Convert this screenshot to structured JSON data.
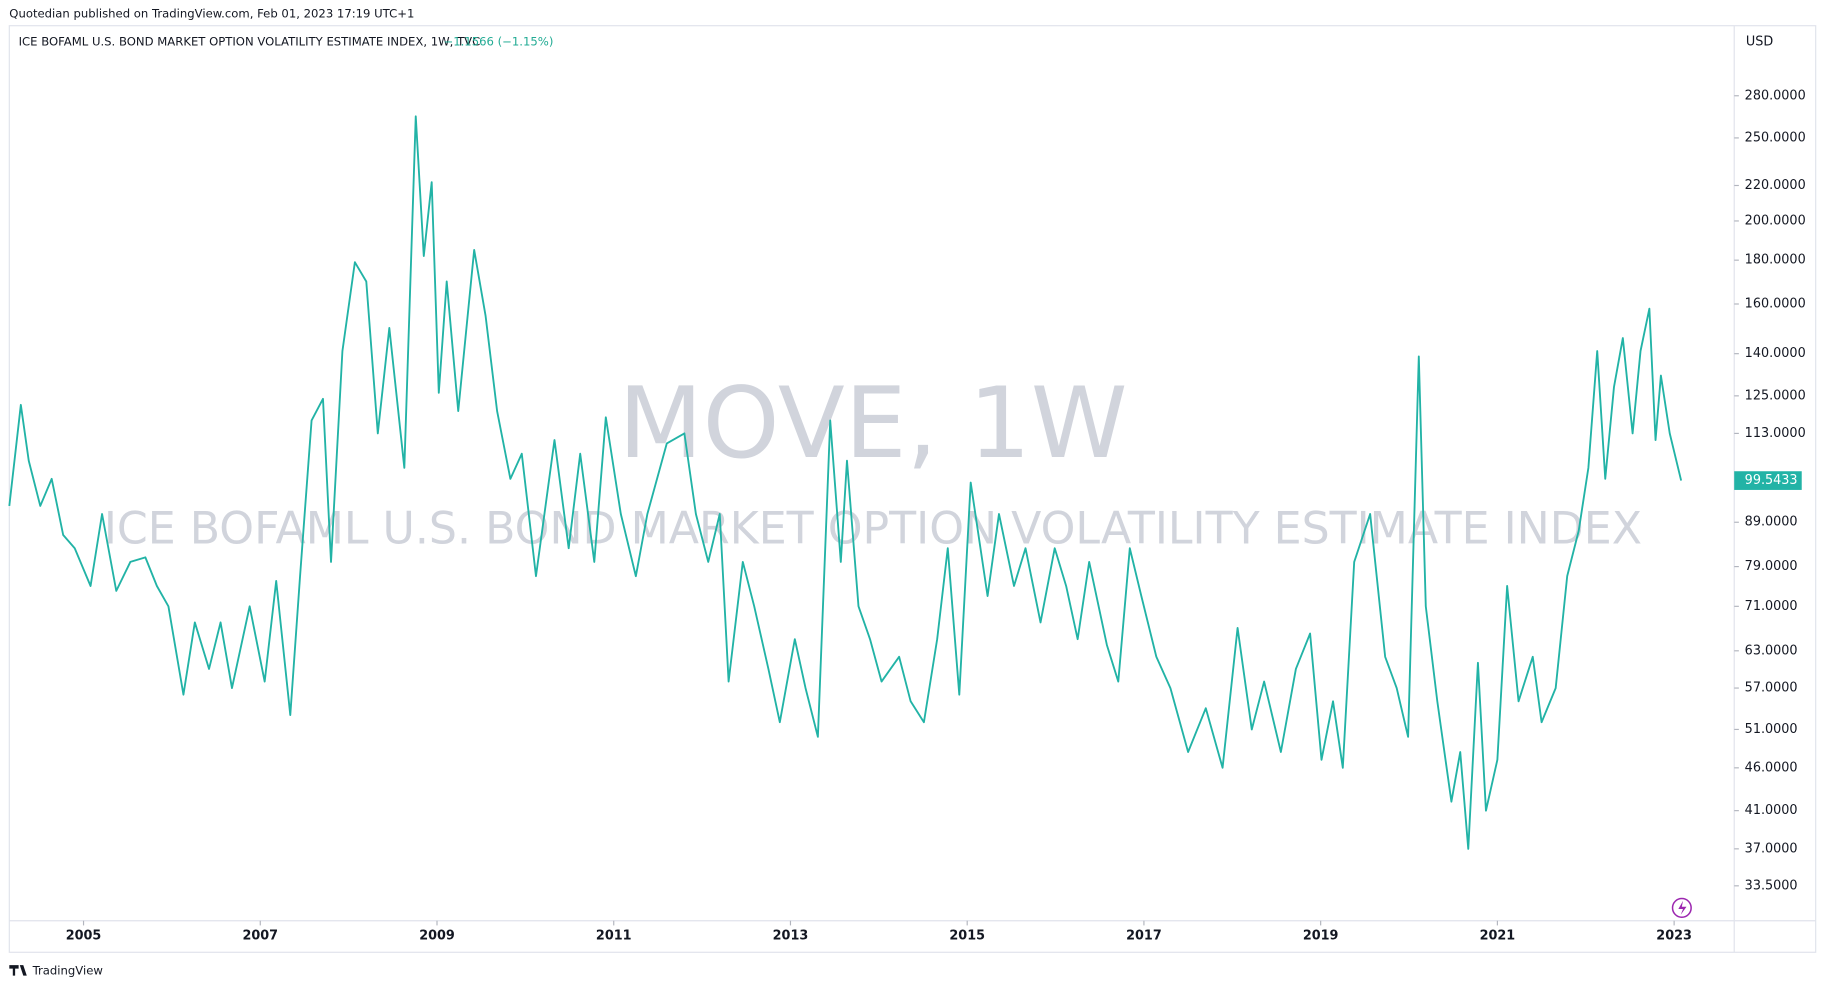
{
  "header": {
    "publisher": "Quotedian published on TradingView.com, Feb 01, 2023 17:19 UTC+1",
    "brand": "TradingView"
  },
  "chart_data": {
    "type": "line",
    "title": "ICE BOFAML U.S. BOND MARKET OPTION VOLATILITY ESTIMATE INDEX, 1W, TVC",
    "change": "−1.1566 (−1.15%)",
    "currency": "USD",
    "watermark": "MOVE, 1W",
    "watermark_subtitle": "ICE BOFAML U.S. BOND MARKET OPTION VOLATILITY ESTIMATE INDEX",
    "log_scale": true,
    "grid": false,
    "xlim": [
      2004.16,
      2023.68
    ],
    "xticks": [
      2005,
      2007,
      2009,
      2011,
      2013,
      2015,
      2017,
      2019,
      2021,
      2023
    ],
    "ylim": [
      30.5,
      338
    ],
    "yticks": [
      {
        "value": 280,
        "label": "280.0000"
      },
      {
        "value": 250,
        "label": "250.0000"
      },
      {
        "value": 220,
        "label": "220.0000"
      },
      {
        "value": 200,
        "label": "200.0000"
      },
      {
        "value": 180,
        "label": "180.0000"
      },
      {
        "value": 160,
        "label": "160.0000"
      },
      {
        "value": 140,
        "label": "140.0000"
      },
      {
        "value": 125,
        "label": "125.0000"
      },
      {
        "value": 113,
        "label": "113.0000"
      },
      {
        "value": 89,
        "label": "89.0000"
      },
      {
        "value": 79,
        "label": "79.0000"
      },
      {
        "value": 71,
        "label": "71.0000"
      },
      {
        "value": 63,
        "label": "63.0000"
      },
      {
        "value": 57,
        "label": "57.0000"
      },
      {
        "value": 51,
        "label": "51.0000"
      },
      {
        "value": 46,
        "label": "46.0000"
      },
      {
        "value": 41,
        "label": "41.0000"
      },
      {
        "value": 37,
        "label": "37.0000"
      },
      {
        "value": 33.5,
        "label": "33.5000"
      }
    ],
    "x": [
      2004.16,
      2004.29,
      2004.38,
      2004.51,
      2004.64,
      2004.77,
      2004.9,
      2005.08,
      2005.21,
      2005.37,
      2005.53,
      2005.7,
      2005.83,
      2005.96,
      2006.13,
      2006.26,
      2006.42,
      2006.55,
      2006.68,
      2006.88,
      2007.05,
      2007.18,
      2007.34,
      2007.45,
      2007.58,
      2007.71,
      2007.8,
      2007.93,
      2008.07,
      2008.2,
      2008.33,
      2008.46,
      2008.63,
      2008.76,
      2008.85,
      2008.94,
      2009.02,
      2009.11,
      2009.24,
      2009.42,
      2009.55,
      2009.68,
      2009.83,
      2009.96,
      2010.12,
      2010.33,
      2010.49,
      2010.62,
      2010.78,
      2010.91,
      2011.08,
      2011.25,
      2011.38,
      2011.6,
      2011.8,
      2011.93,
      2012.07,
      2012.2,
      2012.3,
      2012.46,
      2012.59,
      2012.75,
      2012.88,
      2013.05,
      2013.17,
      2013.31,
      2013.45,
      2013.57,
      2013.64,
      2013.77,
      2013.9,
      2014.03,
      2014.23,
      2014.36,
      2014.51,
      2014.66,
      2014.78,
      2014.91,
      2015.04,
      2015.23,
      2015.36,
      2015.53,
      2015.66,
      2015.83,
      2015.99,
      2016.12,
      2016.25,
      2016.38,
      2016.58,
      2016.71,
      2016.84,
      2016.97,
      2017.14,
      2017.3,
      2017.5,
      2017.7,
      2017.89,
      2018.06,
      2018.22,
      2018.36,
      2018.55,
      2018.72,
      2018.88,
      2019.01,
      2019.14,
      2019.25,
      2019.38,
      2019.56,
      2019.73,
      2019.86,
      2019.99,
      2020.11,
      2020.19,
      2020.32,
      2020.48,
      2020.58,
      2020.67,
      2020.78,
      2020.87,
      2021.0,
      2021.11,
      2021.24,
      2021.4,
      2021.5,
      2021.66,
      2021.79,
      2021.92,
      2022.03,
      2022.13,
      2022.22,
      2022.32,
      2022.42,
      2022.53,
      2022.62,
      2022.72,
      2022.79,
      2022.85,
      2022.95,
      2023.08
    ],
    "series": [
      {
        "name": "MOVE",
        "color": "#22b3a6",
        "values": [
          93,
          122,
          105,
          93,
          100,
          86,
          83,
          75,
          91,
          74,
          80,
          81,
          75,
          71,
          56,
          68,
          60,
          68,
          57,
          71,
          58,
          76,
          53,
          77,
          117,
          124,
          80,
          141,
          179,
          170,
          113,
          150,
          103,
          265,
          182,
          222,
          126,
          170,
          120,
          185,
          155,
          120,
          100,
          107,
          77,
          111,
          83,
          107,
          80,
          118,
          91,
          77,
          91,
          110,
          113,
          91,
          80,
          91,
          58,
          80,
          71,
          60,
          52,
          65,
          57,
          50,
          117,
          80,
          105,
          71,
          65,
          58,
          62,
          55,
          52,
          65,
          83,
          56,
          99,
          73,
          91,
          75,
          83,
          68,
          83,
          75,
          65,
          80,
          64,
          58,
          83,
          73,
          62,
          57,
          48,
          54,
          46,
          67,
          51,
          58,
          48,
          60,
          66,
          47,
          55,
          46,
          80,
          91,
          62,
          57,
          50,
          139,
          71,
          55,
          42,
          48,
          37,
          61,
          41,
          47,
          75,
          55,
          62,
          52,
          57,
          77,
          87,
          103,
          141,
          100,
          128,
          146,
          113,
          141,
          158,
          111,
          132,
          113,
          99.5433
        ]
      }
    ]
  }
}
